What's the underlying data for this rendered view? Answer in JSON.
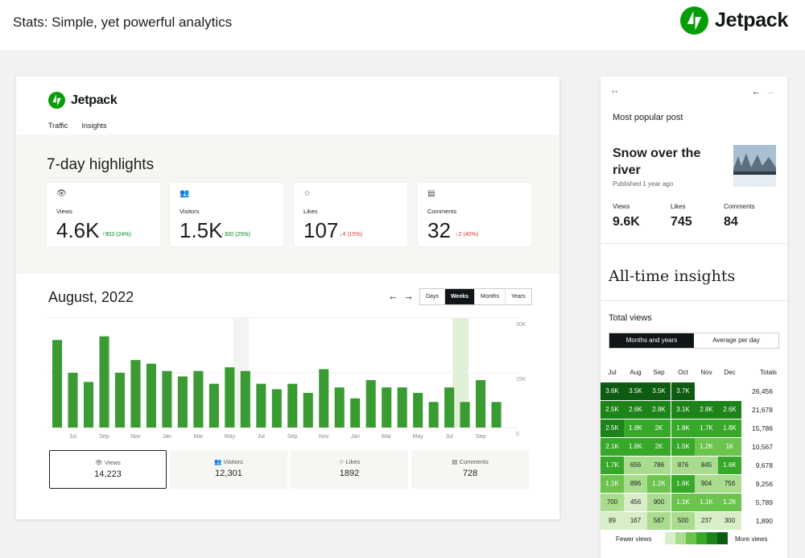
{
  "header": {
    "headline": "Stats: Simple, yet powerful analytics",
    "brand": "Jetpack"
  },
  "colors": {
    "brand_green": "#069e08",
    "bar_green": "#3a9b32",
    "highlight_col": "#dff0d6",
    "up": "#008a20",
    "down": "#d63638"
  },
  "dashboard": {
    "brand": "Jetpack",
    "tabs": [
      {
        "label": "Traffic",
        "active": true
      },
      {
        "label": "Insights",
        "active": false
      }
    ],
    "highlights_title": "7-day highlights",
    "highlights": [
      {
        "icon": "eye-icon",
        "glyph": "👁",
        "label": "Views",
        "value": "4.6K",
        "change": "↑903 (24%)",
        "dir": "up"
      },
      {
        "icon": "people-icon",
        "glyph": "👥",
        "label": "Visitors",
        "value": "1.5K",
        "change": "↑300 (25%)",
        "dir": "up"
      },
      {
        "icon": "star-icon",
        "glyph": "☆",
        "label": "Likes",
        "value": "107",
        "change": "↓4 (15%)",
        "dir": "down"
      },
      {
        "icon": "comment-icon",
        "glyph": "▤",
        "label": "Comments",
        "value": "32",
        "change": "↓2 (40%)",
        "dir": "down"
      }
    ],
    "period_title": "August, 2022",
    "prev_arrow": "←",
    "next_arrow": "→",
    "periods": [
      {
        "label": "Days",
        "active": false
      },
      {
        "label": "Weeks",
        "active": true
      },
      {
        "label": "Months",
        "active": false
      },
      {
        "label": "Years",
        "active": false
      }
    ],
    "totals": [
      {
        "icon": "eye-icon",
        "glyph": "👁",
        "label": "Views",
        "value": "14,223",
        "active": true
      },
      {
        "icon": "people-icon",
        "glyph": "👥",
        "label": "Visitors",
        "value": "12,301",
        "active": false
      },
      {
        "icon": "star-icon",
        "glyph": "☆",
        "label": "Likes",
        "value": "1892",
        "active": false
      },
      {
        "icon": "comment-icon",
        "glyph": "▤",
        "label": "Comments",
        "value": "728",
        "active": false
      }
    ]
  },
  "chart_data": {
    "type": "bar",
    "x_tick_labels": [
      "Jul",
      "Sep",
      "Nov",
      "Jan",
      "Mar",
      "May",
      "Jul",
      "Sep",
      "Nov",
      "Jan",
      "Mar",
      "May",
      "Jul",
      "Sep"
    ],
    "y_tick_labels": [
      "30K",
      "15K",
      "0"
    ],
    "ylim": [
      0,
      30000
    ],
    "values": [
      24000,
      15000,
      12500,
      25000,
      15000,
      18500,
      17500,
      15500,
      14000,
      15500,
      12000,
      16500,
      15500,
      12000,
      10500,
      12000,
      9500,
      16000,
      11000,
      8000,
      13000,
      11000,
      11000,
      9500,
      7000,
      11000,
      7000,
      13000,
      7000
    ],
    "highlight_bars": [
      12,
      26
    ],
    "grid": true
  },
  "side": {
    "dots": "••",
    "prev_arrow": "←",
    "next_arrow": "→",
    "most_popular_label": "Most popular post",
    "post_title": "Snow over the river",
    "post_date": "Published 1 year ago",
    "post_stats": [
      {
        "label": "Views",
        "value": "9.6K"
      },
      {
        "label": "Likes",
        "value": "745"
      },
      {
        "label": "Comments",
        "value": "84"
      }
    ],
    "insights_title": "All-time insights",
    "total_views_label": "Total views",
    "toggle": [
      {
        "label": "Months and years",
        "active": true
      },
      {
        "label": "Average per day",
        "active": false
      }
    ],
    "heatmap": {
      "columns": [
        "Jul",
        "Aug",
        "Sep",
        "Oct",
        "Nov",
        "Dec"
      ],
      "totals_label": "Totals",
      "rows": [
        {
          "cells": [
            "3.6K",
            "3.5K",
            "3.5K",
            "3.7K",
            "",
            ""
          ],
          "total": "26,456"
        },
        {
          "cells": [
            "2.5K",
            "2.6K",
            "2.8K",
            "3.1K",
            "2.8K",
            "2.6K"
          ],
          "total": "21,678"
        },
        {
          "cells": [
            "2.5K",
            "1.8K",
            "2K",
            "1.8K",
            "1.7K",
            "1.8K"
          ],
          "total": "15,786"
        },
        {
          "cells": [
            "2.1K",
            "1.8K",
            "2K",
            "1.5K",
            "1.2K",
            "1K"
          ],
          "total": "10,567"
        },
        {
          "cells": [
            "1.7K",
            "656",
            "786",
            "876",
            "845",
            "1.6K"
          ],
          "total": "9,678"
        },
        {
          "cells": [
            "1.1K",
            "896",
            "1.2K",
            "1.6K",
            "904",
            "756"
          ],
          "total": "9,256"
        },
        {
          "cells": [
            "700",
            "456",
            "900",
            "1.1K",
            "1.1K",
            "1.2K"
          ],
          "total": "5,789"
        },
        {
          "cells": [
            "89",
            "167",
            "567",
            "500",
            "237",
            "300"
          ],
          "total": "1,890"
        }
      ],
      "legend_low": "Fewer views",
      "legend_high": "More views",
      "scale_colors": [
        "#d8eec9",
        "#a9dc8e",
        "#6cc44f",
        "#38a82a",
        "#1c8418",
        "#0e5c11"
      ]
    }
  }
}
